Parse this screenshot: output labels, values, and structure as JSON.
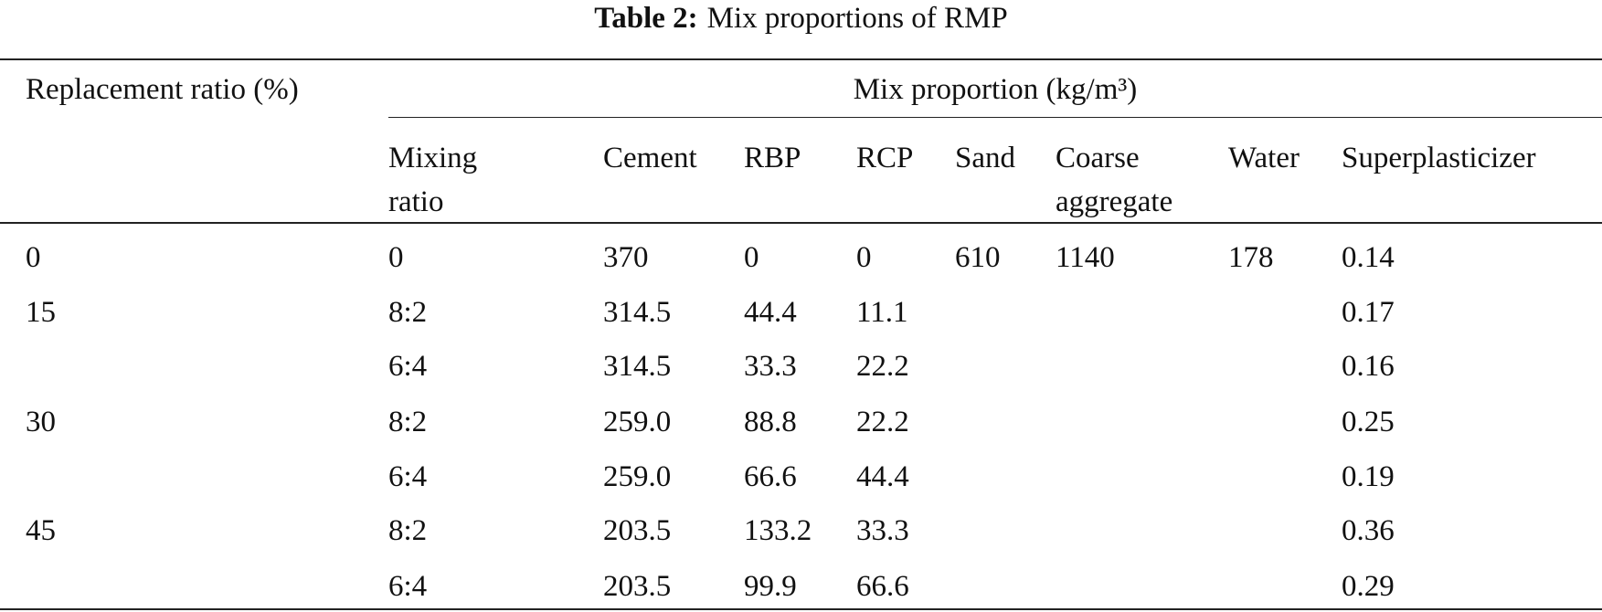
{
  "title": {
    "label": "Table 2:",
    "text": "Mix proportions of RMP"
  },
  "table": {
    "header": {
      "group_label": "Replacement ratio (%)",
      "span_label": "Mix proportion (kg/m³)"
    },
    "columns": [
      "Mixing ratio",
      "Cement",
      "RBP",
      "RCP",
      "Sand",
      "Coarse aggregate",
      "Water",
      "Superplasticizer"
    ],
    "groups": [
      {
        "ratio": "0",
        "rows": [
          [
            "0",
            "370",
            "0",
            "0",
            "610",
            "1140",
            "178",
            "0.14"
          ]
        ]
      },
      {
        "ratio": "15",
        "rows": [
          [
            "8:2",
            "314.5",
            "44.4",
            "11.1",
            null,
            null,
            null,
            "0.17"
          ],
          [
            "6:4",
            "314.5",
            "33.3",
            "22.2",
            null,
            null,
            null,
            "0.16"
          ]
        ]
      },
      {
        "ratio": "30",
        "rows": [
          [
            "8:2",
            "259.0",
            "88.8",
            "22.2",
            null,
            null,
            null,
            "0.25"
          ],
          [
            "6:4",
            "259.0",
            "66.6",
            "44.4",
            null,
            null,
            null,
            "0.19"
          ]
        ]
      },
      {
        "ratio": "45",
        "rows": [
          [
            "8:2",
            "203.5",
            "133.2",
            "33.3",
            null,
            null,
            null,
            "0.36"
          ],
          [
            "6:4",
            "203.5",
            "99.9",
            "66.6",
            null,
            null,
            null,
            "0.29"
          ]
        ]
      }
    ]
  }
}
